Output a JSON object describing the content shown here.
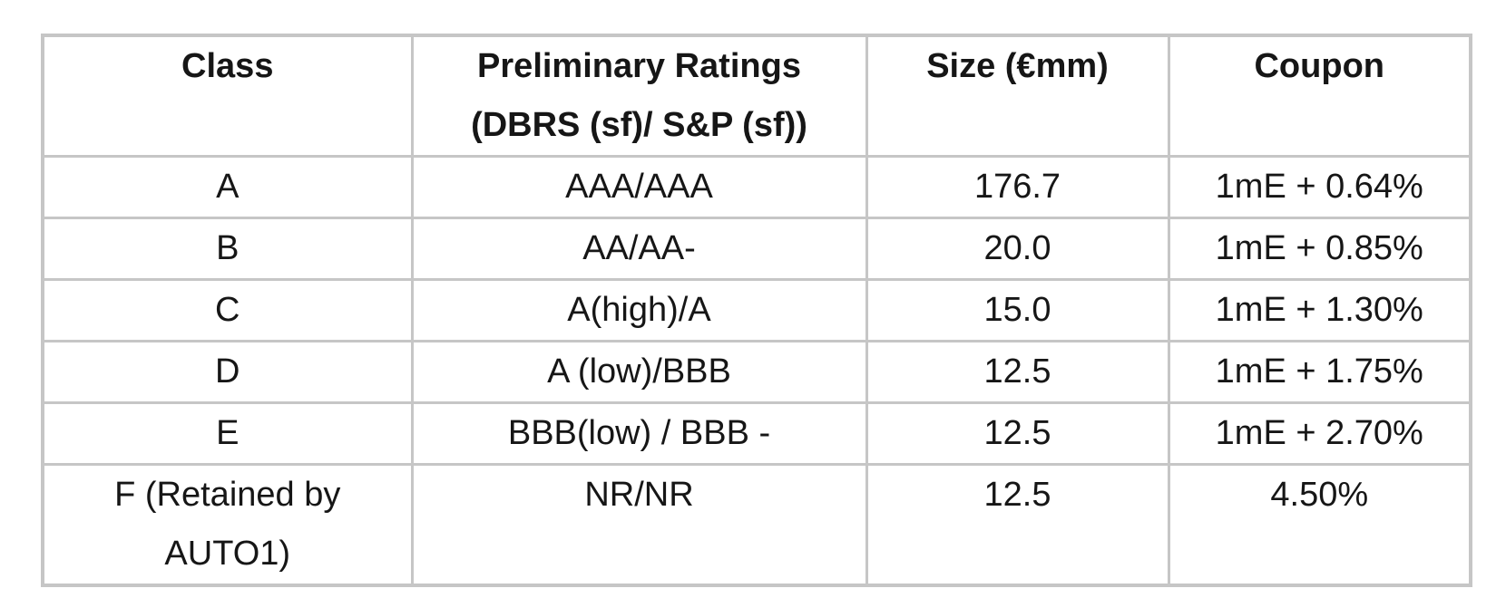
{
  "table": {
    "headers": {
      "class": "Class",
      "ratings_line1": "Preliminary Ratings",
      "ratings_line2": "(DBRS (sf)/ S&P (sf))",
      "size": "Size (€mm)",
      "coupon": "Coupon"
    },
    "rows": [
      {
        "class": "A",
        "rating": "AAA/AAA",
        "size": "176.7",
        "coupon": "1mE + 0.64%"
      },
      {
        "class": "B",
        "rating": "AA/AA-",
        "size": "20.0",
        "coupon": "1mE + 0.85%"
      },
      {
        "class": "C",
        "rating": "A(high)/A",
        "size": "15.0",
        "coupon": "1mE + 1.30%"
      },
      {
        "class": "D",
        "rating": "A (low)/BBB",
        "size": "12.5",
        "coupon": "1mE + 1.75%"
      },
      {
        "class": "E",
        "rating": "BBB(low) / BBB -",
        "size": "12.5",
        "coupon": "1mE + 2.70%"
      },
      {
        "class": "F (Retained by AUTO1)",
        "rating": "NR/NR",
        "size": "12.5",
        "coupon": "4.50%"
      }
    ],
    "colors": {
      "border": "#c6c6c6",
      "text": "#161616",
      "background": "#ffffff"
    }
  }
}
